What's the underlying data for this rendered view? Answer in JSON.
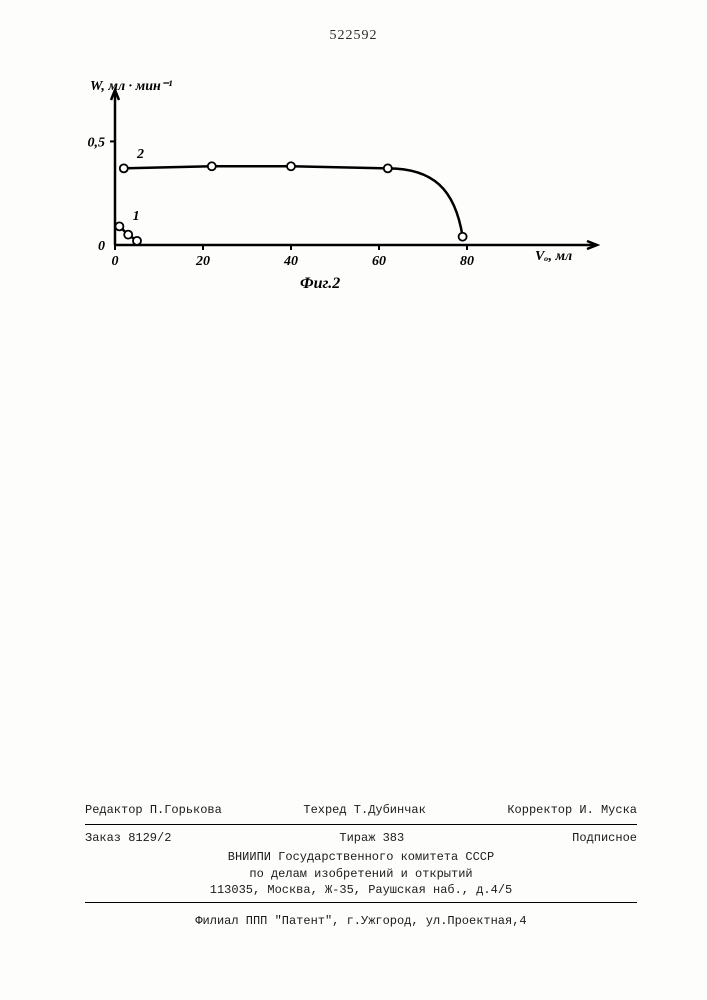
{
  "page_number": "522592",
  "chart": {
    "type": "line",
    "y_axis_label": "W, мл · мин⁻¹",
    "x_axis_label": "Vₒ, мл",
    "figure_caption": "Фиг.2",
    "xlim": [
      0,
      100
    ],
    "ylim": [
      0,
      0.7
    ],
    "x_ticks": [
      0,
      20,
      40,
      60,
      80
    ],
    "x_tick_labels": [
      "0",
      "20",
      "40",
      "60",
      "80"
    ],
    "y_ticks": [
      0,
      0.5
    ],
    "y_tick_labels": [
      "0",
      "0,5"
    ],
    "series": [
      {
        "label": "1",
        "label_pos": {
          "x": 4,
          "y": 0.12
        },
        "points": [
          {
            "x": 1,
            "y": 0.09
          },
          {
            "x": 3,
            "y": 0.05
          },
          {
            "x": 5,
            "y": 0.02
          }
        ],
        "line_width": 2.5,
        "color": "#000000",
        "marker": "circle-open",
        "marker_size": 4
      },
      {
        "label": "2",
        "label_pos": {
          "x": 5,
          "y": 0.42
        },
        "points": [
          {
            "x": 2,
            "y": 0.37
          },
          {
            "x": 22,
            "y": 0.38
          },
          {
            "x": 40,
            "y": 0.38
          },
          {
            "x": 62,
            "y": 0.37
          },
          {
            "x": 79,
            "y": 0.04
          }
        ],
        "line_width": 2.5,
        "color": "#000000",
        "marker": "circle-open",
        "marker_size": 4
      }
    ],
    "axis_color": "#000000",
    "axis_width": 2.5,
    "background_color": "#fdfdfc",
    "label_fontsize": 14,
    "tick_fontsize": 14
  },
  "footer": {
    "editor_label": "Редактор",
    "editor_name": "П.Горькова",
    "techred_label": "Техред",
    "techred_name": "Т.Дубинчак",
    "corrector_label": "Корректор",
    "corrector_name": "И. Муска",
    "order": "Заказ 8129/2",
    "tirazh": "Тираж 383",
    "podpisnoe": "Подписное",
    "org1": "ВНИИПИ Государственного комитета СССР",
    "org2": "по делам изобретений и открытий",
    "address": "113035, Москва, Ж-35, Раушская наб., д.4/5",
    "printer": "Филиал ППП \"Патент\", г.Ужгород, ул.Проектная,4"
  },
  "colors": {
    "text": "#1a1a1a",
    "background": "#fdfdfc",
    "axis": "#000000"
  }
}
